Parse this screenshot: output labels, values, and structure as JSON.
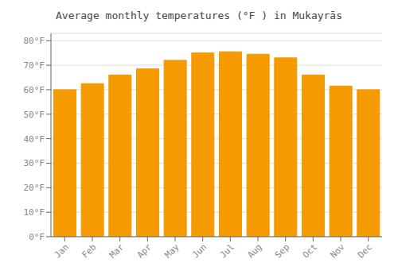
{
  "chart_data": {
    "type": "bar",
    "title": "Average monthly temperatures (°F ) in Mukayrās",
    "categories": [
      "Jan",
      "Feb",
      "Mar",
      "Apr",
      "May",
      "Jun",
      "Jul",
      "Aug",
      "Sep",
      "Oct",
      "Nov",
      "Dec"
    ],
    "values": [
      60,
      62.5,
      66,
      68.5,
      72,
      75,
      75.5,
      74.5,
      73,
      66,
      61.5,
      60
    ],
    "color": "#F59A00",
    "ylim": [
      0,
      83
    ],
    "yticks": [
      {
        "value": 0,
        "label": "0°F"
      },
      {
        "value": 10,
        "label": "10°F"
      },
      {
        "value": 20,
        "label": "20°F"
      },
      {
        "value": 30,
        "label": "30°F"
      },
      {
        "value": 40,
        "label": "40°F"
      },
      {
        "value": 50,
        "label": "50°F"
      },
      {
        "value": 60,
        "label": "60°F"
      },
      {
        "value": 70,
        "label": "70°F"
      },
      {
        "value": 80,
        "label": "80°F"
      }
    ],
    "grid": true
  }
}
